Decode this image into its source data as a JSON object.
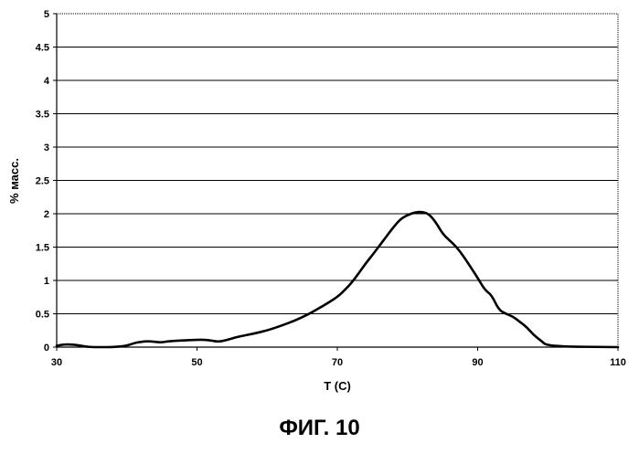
{
  "chart_data": {
    "type": "line",
    "title": "",
    "xlabel": "T (C)",
    "ylabel": "% масс.",
    "xlim": [
      30,
      110
    ],
    "ylim": [
      0,
      5
    ],
    "x_ticks": [
      30,
      50,
      70,
      90,
      110
    ],
    "y_ticks": [
      0,
      0.5,
      1,
      1.5,
      2,
      2.5,
      3,
      3.5,
      4,
      4.5,
      5
    ],
    "y_tick_labels": [
      "0",
      "0.5",
      "1",
      "1.5",
      "2",
      "2.5",
      "3",
      "3.5",
      "4",
      "4.5",
      "5"
    ],
    "grid": "horizontal",
    "legend": "none",
    "series": [
      {
        "color": "#000000",
        "x": [
          30,
          31,
          32,
          33,
          34,
          35,
          36,
          38,
          40,
          41,
          42,
          43,
          44,
          45,
          46,
          48,
          50,
          51,
          52,
          53,
          54,
          55,
          56,
          58,
          60,
          62,
          64,
          66,
          67,
          68,
          70,
          71,
          72,
          73,
          74,
          75,
          76,
          77,
          78,
          79,
          80,
          81,
          82,
          83,
          84,
          85,
          86,
          87,
          88,
          89,
          90,
          91,
          92,
          93,
          94,
          95,
          96,
          97,
          98,
          99,
          100,
          110
        ],
        "y": [
          0.02,
          0.04,
          0.04,
          0.03,
          0.01,
          0.0,
          0.0,
          0.0,
          0.02,
          0.06,
          0.08,
          0.09,
          0.08,
          0.07,
          0.09,
          0.1,
          0.11,
          0.11,
          0.1,
          0.08,
          0.1,
          0.13,
          0.16,
          0.2,
          0.25,
          0.32,
          0.4,
          0.5,
          0.56,
          0.62,
          0.75,
          0.85,
          0.96,
          1.1,
          1.25,
          1.38,
          1.52,
          1.66,
          1.8,
          1.92,
          1.98,
          2.02,
          2.03,
          2.0,
          1.88,
          1.7,
          1.6,
          1.5,
          1.36,
          1.2,
          1.04,
          0.86,
          0.78,
          0.56,
          0.5,
          0.46,
          0.38,
          0.3,
          0.18,
          0.1,
          0.01,
          0.0
        ]
      }
    ]
  },
  "figure_caption": "ФИГ. 10"
}
